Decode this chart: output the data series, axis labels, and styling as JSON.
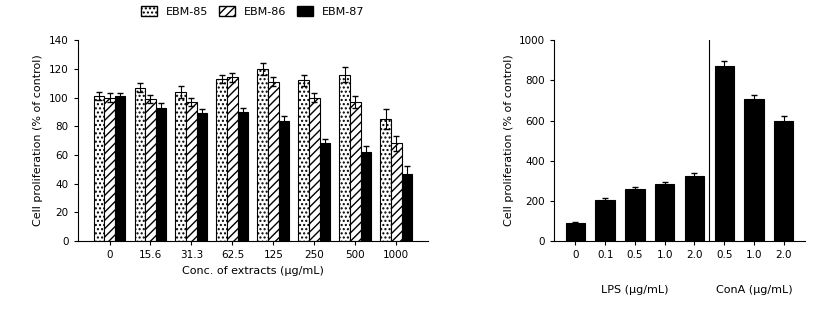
{
  "left_categories": [
    "0",
    "15.6",
    "31.3",
    "62.5",
    "125",
    "250",
    "500",
    "1000"
  ],
  "ebm85_values": [
    101,
    107,
    104,
    113,
    120,
    112,
    116,
    85
  ],
  "ebm86_values": [
    100,
    99,
    97,
    114,
    111,
    100,
    97,
    68
  ],
  "ebm87_values": [
    101,
    93,
    89,
    90,
    84,
    68,
    62,
    47
  ],
  "ebm85_errors": [
    3,
    3,
    4,
    3,
    4,
    4,
    5,
    7
  ],
  "ebm86_errors": [
    3,
    3,
    3,
    3,
    3,
    3,
    4,
    5
  ],
  "ebm87_errors": [
    2,
    3,
    3,
    3,
    3,
    3,
    4,
    5
  ],
  "left_ylabel": "Cell proliferation (% of control)",
  "left_xlabel": "Conc. of extracts (μg/mL)",
  "left_ylim": [
    0,
    140
  ],
  "left_yticks": [
    0,
    20,
    40,
    60,
    80,
    100,
    120,
    140
  ],
  "right_values": [
    90,
    205,
    260,
    285,
    325,
    870,
    705,
    600
  ],
  "right_errors": [
    5,
    8,
    10,
    10,
    12,
    25,
    20,
    20
  ],
  "right_categories_lps": [
    "0",
    "0.1",
    "0.5",
    "1.0",
    "2.0"
  ],
  "right_categories_cona": [
    "0.5",
    "1.0",
    "2.0"
  ],
  "right_ylabel": "Cell proliferation (% of control)",
  "right_ylim": [
    0,
    1000
  ],
  "right_yticks": [
    0,
    200,
    400,
    600,
    800,
    1000
  ],
  "lps_label": "LPS (μg/mL)",
  "cona_label": "ConA (μg/mL)",
  "bar_color_87": "#000000",
  "right_bar_color": "#000000",
  "legend_labels": [
    "EBM-85",
    "EBM-86",
    "EBM-87"
  ]
}
